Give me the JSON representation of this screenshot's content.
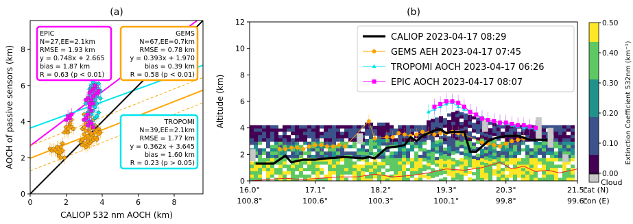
{
  "chart_data": [
    {
      "panel": "(a)",
      "type": "scatter",
      "xlabel": "CALIOP 532 nm AOCH (km)",
      "ylabel": "AOCH of passive sensors (km)",
      "xlim": [
        0,
        9.6
      ],
      "ylim": [
        0,
        9.6
      ],
      "xticks": [
        0,
        2,
        4,
        6,
        8
      ],
      "yticks": [
        0,
        2,
        4,
        6,
        8
      ],
      "grid": false,
      "one_to_one_line": true,
      "series": [
        {
          "name": "EPIC",
          "color": "#ff00ff",
          "marker": "square",
          "fit": {
            "slope": 0.748,
            "intercept": 2.665
          },
          "ee": 2.1,
          "stats": [
            "EPIC",
            "N=27,EE=2.1km",
            "RMSE = 1.93 km",
            "y = 0.748x + 2.665",
            "bias = 1.87 km",
            "R = 0.63 (p < 0.01)"
          ],
          "points": [
            [
              3.3,
              5.6
            ],
            [
              3.4,
              5.7
            ],
            [
              3.5,
              5.8
            ],
            [
              3.6,
              5.5
            ],
            [
              3.5,
              5.4
            ],
            [
              3.4,
              5.2
            ],
            [
              3.3,
              5.0
            ],
            [
              3.2,
              5.3
            ],
            [
              3.6,
              5.9
            ],
            [
              3.7,
              5.6
            ],
            [
              3.5,
              5.0
            ],
            [
              3.3,
              4.8
            ],
            [
              3.4,
              4.6
            ],
            [
              3.2,
              4.4
            ],
            [
              3.1,
              4.2
            ],
            [
              3.0,
              4.1
            ],
            [
              3.3,
              4.0
            ],
            [
              3.2,
              3.8
            ],
            [
              3.4,
              3.9
            ],
            [
              3.5,
              3.7
            ],
            [
              2.0,
              4.1
            ],
            [
              2.1,
              4.3
            ],
            [
              2.2,
              4.2
            ],
            [
              2.3,
              4.4
            ],
            [
              3.6,
              6.0
            ],
            [
              3.8,
              5.7
            ],
            [
              3.1,
              5.2
            ]
          ]
        },
        {
          "name": "GEMS",
          "color": "#ffa500",
          "marker": "circle",
          "fit": {
            "slope": 0.393,
            "intercept": 1.97
          },
          "ee": 0.7,
          "stats": [
            "GEMS",
            "N=67,EE=0.7km",
            "RMSE = 0.78 km",
            "y = 0.393x + 1.970",
            "bias = 0.39 km",
            "R = 0.58 (p < 0.01)"
          ],
          "points": [
            [
              1.1,
              2.5
            ],
            [
              1.2,
              2.4
            ],
            [
              1.3,
              2.5
            ],
            [
              1.4,
              2.4
            ],
            [
              1.5,
              2.6
            ],
            [
              1.6,
              2.5
            ],
            [
              1.5,
              2.3
            ],
            [
              1.6,
              2.2
            ],
            [
              1.7,
              2.3
            ],
            [
              1.6,
              2.1
            ],
            [
              1.7,
              2.0
            ],
            [
              1.8,
              2.4
            ],
            [
              1.7,
              2.6
            ],
            [
              1.8,
              2.8
            ],
            [
              1.9,
              3.4
            ],
            [
              1.9,
              2.0
            ],
            [
              2.0,
              3.5
            ],
            [
              2.0,
              3.7
            ],
            [
              2.1,
              3.6
            ],
            [
              2.2,
              3.8
            ],
            [
              2.1,
              3.4
            ],
            [
              2.3,
              3.7
            ],
            [
              2.2,
              3.9
            ],
            [
              2.4,
              3.6
            ],
            [
              2.3,
              4.1
            ],
            [
              2.8,
              2.9
            ],
            [
              2.9,
              3.0
            ],
            [
              3.0,
              2.8
            ],
            [
              3.1,
              3.1
            ],
            [
              3.0,
              3.3
            ],
            [
              3.2,
              3.2
            ],
            [
              3.1,
              3.5
            ],
            [
              3.3,
              3.4
            ],
            [
              3.2,
              3.0
            ],
            [
              3.3,
              3.6
            ],
            [
              3.4,
              3.3
            ],
            [
              3.3,
              3.8
            ],
            [
              3.4,
              3.9
            ],
            [
              3.5,
              3.6
            ],
            [
              3.4,
              4.0
            ],
            [
              3.6,
              3.4
            ],
            [
              3.5,
              3.2
            ],
            [
              3.6,
              3.8
            ],
            [
              3.7,
              3.5
            ],
            [
              3.2,
              2.7
            ],
            [
              3.1,
              2.6
            ],
            [
              3.4,
              2.9
            ],
            [
              3.5,
              4.1
            ],
            [
              3.6,
              4.2
            ],
            [
              3.3,
              4.3
            ],
            [
              3.2,
              4.5
            ],
            [
              3.0,
              4.4
            ],
            [
              3.7,
              3.1
            ],
            [
              3.8,
              3.3
            ],
            [
              3.9,
              3.4
            ],
            [
              3.1,
              3.9
            ],
            [
              2.9,
              3.6
            ],
            [
              3.0,
              3.7
            ],
            [
              3.2,
              3.9
            ],
            [
              3.4,
              3.1
            ],
            [
              3.5,
              3.0
            ],
            [
              3.6,
              3.1
            ],
            [
              2.9,
              2.7
            ],
            [
              3.8,
              3.6
            ],
            [
              3.3,
              2.8
            ],
            [
              3.7,
              3.0
            ],
            [
              3.2,
              2.9
            ]
          ]
        },
        {
          "name": "TROPOMI",
          "color": "#00e5ee",
          "marker": "circle",
          "fit": {
            "slope": 0.362,
            "intercept": 3.645
          },
          "ee": 2.1,
          "stats": [
            "TROPOMI",
            "N=39,EE=2.1km",
            "RMSE = 1.77 km",
            "y = 0.362x + 3.645",
            "bias = 1.60 km",
            "R = 0.23 (p > 0.05)"
          ],
          "points": [
            [
              3.3,
              5.8
            ],
            [
              3.4,
              5.9
            ],
            [
              3.5,
              6.0
            ],
            [
              3.6,
              5.7
            ],
            [
              3.5,
              5.5
            ],
            [
              3.4,
              5.4
            ],
            [
              3.3,
              5.2
            ],
            [
              3.6,
              5.6
            ],
            [
              3.7,
              5.9
            ],
            [
              3.8,
              6.1
            ],
            [
              3.5,
              5.1
            ],
            [
              3.4,
              4.9
            ],
            [
              3.3,
              4.7
            ],
            [
              3.2,
              4.5
            ],
            [
              3.1,
              4.3
            ],
            [
              3.4,
              4.4
            ],
            [
              3.5,
              4.6
            ],
            [
              3.6,
              4.8
            ],
            [
              3.7,
              5.0
            ],
            [
              3.2,
              4.1
            ],
            [
              3.3,
              3.9
            ],
            [
              3.4,
              4.0
            ],
            [
              3.6,
              4.2
            ],
            [
              3.5,
              3.8
            ],
            [
              3.7,
              4.3
            ],
            [
              3.8,
              4.5
            ],
            [
              3.9,
              5.3
            ],
            [
              3.6,
              6.1
            ],
            [
              3.5,
              6.2
            ],
            [
              3.8,
              5.8
            ],
            [
              3.2,
              5.3
            ],
            [
              3.1,
              5.0
            ],
            [
              3.4,
              5.6
            ],
            [
              3.3,
              5.5
            ],
            [
              3.7,
              5.4
            ],
            [
              3.6,
              5.2
            ],
            [
              3.9,
              5.7
            ],
            [
              3.4,
              6.0
            ],
            [
              3.5,
              5.3
            ]
          ]
        }
      ]
    },
    {
      "panel": "(b)",
      "type": "line",
      "ylabel": "Altitude (km)",
      "ylim": [
        0,
        12
      ],
      "yticks": [
        0,
        2,
        4,
        6,
        8,
        10,
        12
      ],
      "xlim": [
        16.0,
        21.5
      ],
      "xticks": [
        {
          "lat": "16.0°",
          "lon": "100.8°",
          "x": 16.0
        },
        {
          "lat": "17.1°",
          "lon": "100.6°",
          "x": 17.1
        },
        {
          "lat": "18.2°",
          "lon": "100.3°",
          "x": 18.2
        },
        {
          "lat": "19.3°",
          "lon": "100.1°",
          "x": 19.3
        },
        {
          "lat": "20.3°",
          "lon": "99.8°",
          "x": 20.3
        },
        {
          "lat": "21.5°",
          "lon": "99.6°",
          "x": 21.5
        }
      ],
      "xaxis_labels": [
        "Lat (N)",
        "Lon (E)"
      ],
      "legend_position": "top-right",
      "colorbar": {
        "label": "Extinction Coefficient 532nm (km⁻¹)",
        "min": 0.0,
        "max": 0.5,
        "ticks": [
          "0.00",
          "0.10",
          "0.20",
          "0.30",
          "0.40",
          "0.50"
        ],
        "cloud_label": "Cloud",
        "colors": [
          "#440154",
          "#3b528b",
          "#21918c",
          "#5ec962",
          "#fde725"
        ]
      },
      "series": [
        {
          "name": "CALIOP 2023-04-17 08:29",
          "color": "#000000",
          "x": [
            16.1,
            16.4,
            16.6,
            16.7,
            16.9,
            17.1,
            17.3,
            17.6,
            17.9,
            18.0,
            18.1,
            18.3,
            18.5,
            18.6,
            18.7,
            18.8,
            18.9,
            19.0,
            19.1,
            19.2,
            19.3,
            19.4,
            19.6,
            19.7,
            19.8,
            20.0,
            20.1,
            20.3,
            20.5,
            20.7,
            20.9,
            21.0
          ],
          "y": [
            1.3,
            1.3,
            1.9,
            1.4,
            1.6,
            1.6,
            1.7,
            1.8,
            1.7,
            1.8,
            1.7,
            2.5,
            2.6,
            2.7,
            3.3,
            3.0,
            3.4,
            3.6,
            3.8,
            3.9,
            3.6,
            3.7,
            3.7,
            2.2,
            2.2,
            3.0,
            3.2,
            3.4,
            3.4,
            3.1,
            3.1,
            3.1
          ]
        },
        {
          "name": "GEMS AEH 2023-04-17 07:45",
          "color": "#ffa500",
          "x": [
            16.5,
            16.6,
            16.7,
            16.8,
            16.9,
            17.0,
            17.1,
            17.2,
            17.3,
            17.4,
            17.5,
            17.6,
            18.0,
            18.1,
            18.3,
            18.4,
            18.5,
            18.6,
            18.7,
            18.8,
            18.9,
            19.0,
            19.1,
            19.2,
            19.3,
            19.4,
            19.5,
            19.6,
            19.9,
            20.0,
            20.1,
            20.2,
            20.3,
            20.4,
            20.5,
            20.6
          ],
          "y": [
            2.4,
            2.4,
            2.5,
            2.5,
            2.4,
            2.6,
            2.7,
            2.7,
            2.6,
            2.6,
            2.7,
            2.6,
            4.5,
            3.2,
            3.3,
            3.3,
            3.6,
            3.5,
            3.4,
            3.5,
            3.7,
            3.6,
            3.5,
            3.6,
            3.6,
            3.7,
            3.6,
            3.5,
            2.9,
            2.8,
            2.7,
            2.6,
            2.8,
            3.0,
            3.1,
            3.2
          ]
        },
        {
          "name": "TROPOMI AOCH 2023-04-17 06:26",
          "color": "#00e5ee",
          "x": [
            19.0,
            19.1,
            19.2,
            19.3,
            19.4,
            19.5,
            19.6,
            19.7,
            19.8,
            19.9,
            20.0,
            20.1,
            20.2,
            20.3,
            20.4,
            20.5,
            20.6,
            20.7,
            20.8
          ],
          "y": [
            5.2,
            5.4,
            5.6,
            5.8,
            5.9,
            5.6,
            5.4,
            5.2,
            5.0,
            4.8,
            4.6,
            4.5,
            4.4,
            4.3,
            4.2,
            4.1,
            4.0,
            4.0,
            3.9
          ]
        },
        {
          "name": "EPIC AOCH 2023-04-17 08:07",
          "color": "#ff00ff",
          "x": [
            19.1,
            19.2,
            19.3,
            19.4,
            19.5,
            19.6,
            19.7,
            19.8,
            19.9,
            20.0,
            20.1,
            20.2,
            20.3,
            20.4,
            20.5,
            20.6,
            20.7,
            20.8
          ],
          "y": [
            5.6,
            5.8,
            6.0,
            6.0,
            5.9,
            5.6,
            5.2,
            5.0,
            4.7,
            4.6,
            4.5,
            4.4,
            4.4,
            4.3,
            4.2,
            4.2,
            4.1,
            4.0
          ]
        },
        {
          "name": "",
          "color": "#ee2222",
          "x": [
            16.0,
            16.3,
            16.6,
            16.9,
            17.2,
            17.5,
            17.8,
            18.1,
            18.4,
            18.7,
            19.0,
            19.3,
            19.6,
            19.9,
            20.2,
            20.4,
            20.6,
            20.8,
            21.0,
            21.2,
            21.5
          ],
          "y": [
            0.0,
            0.1,
            0.2,
            0.1,
            0.2,
            0.3,
            0.3,
            0.5,
            0.3,
            0.4,
            0.6,
            0.9,
            0.8,
            1.0,
            1.4,
            0.9,
            1.1,
            0.7,
            0.8,
            0.6,
            0.9
          ]
        }
      ]
    }
  ]
}
